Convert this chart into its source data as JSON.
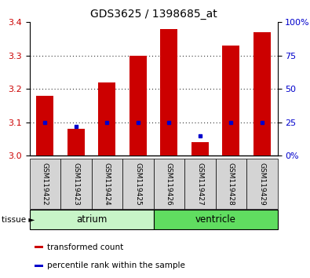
{
  "title": "GDS3625 / 1398685_at",
  "samples": [
    "GSM119422",
    "GSM119423",
    "GSM119424",
    "GSM119425",
    "GSM119426",
    "GSM119427",
    "GSM119428",
    "GSM119429"
  ],
  "red_values": [
    3.18,
    3.08,
    3.22,
    3.3,
    3.38,
    3.04,
    3.33,
    3.37
  ],
  "blue_values": [
    25,
    22,
    25,
    25,
    25,
    15,
    25,
    25
  ],
  "ylim_left": [
    3.0,
    3.4
  ],
  "ylim_right": [
    0,
    100
  ],
  "yticks_left": [
    3.0,
    3.1,
    3.2,
    3.3,
    3.4
  ],
  "yticks_right": [
    0,
    25,
    50,
    75,
    100
  ],
  "ytick_labels_right": [
    "0%",
    "25",
    "50",
    "75",
    "100%"
  ],
  "groups": [
    {
      "label": "atrium",
      "start": 0,
      "end": 4,
      "color": "#c8f5c8"
    },
    {
      "label": "ventricle",
      "start": 4,
      "end": 8,
      "color": "#60dd60"
    }
  ],
  "tissue_label": "tissue",
  "legend_items": [
    {
      "label": "transformed count",
      "color": "#cc0000"
    },
    {
      "label": "percentile rank within the sample",
      "color": "#0000cc"
    }
  ],
  "bar_color": "#cc0000",
  "point_color": "#0000cc",
  "bar_width": 0.55,
  "grid_color": "#000000",
  "bg_color": "#ffffff",
  "title_fontsize": 10,
  "axis_fontsize": 8,
  "tick_label_color_left": "#cc0000",
  "tick_label_color_right": "#0000cc",
  "sample_label_fontsize": 6.5,
  "tissue_fontsize": 8.5,
  "legend_fontsize": 7.5
}
